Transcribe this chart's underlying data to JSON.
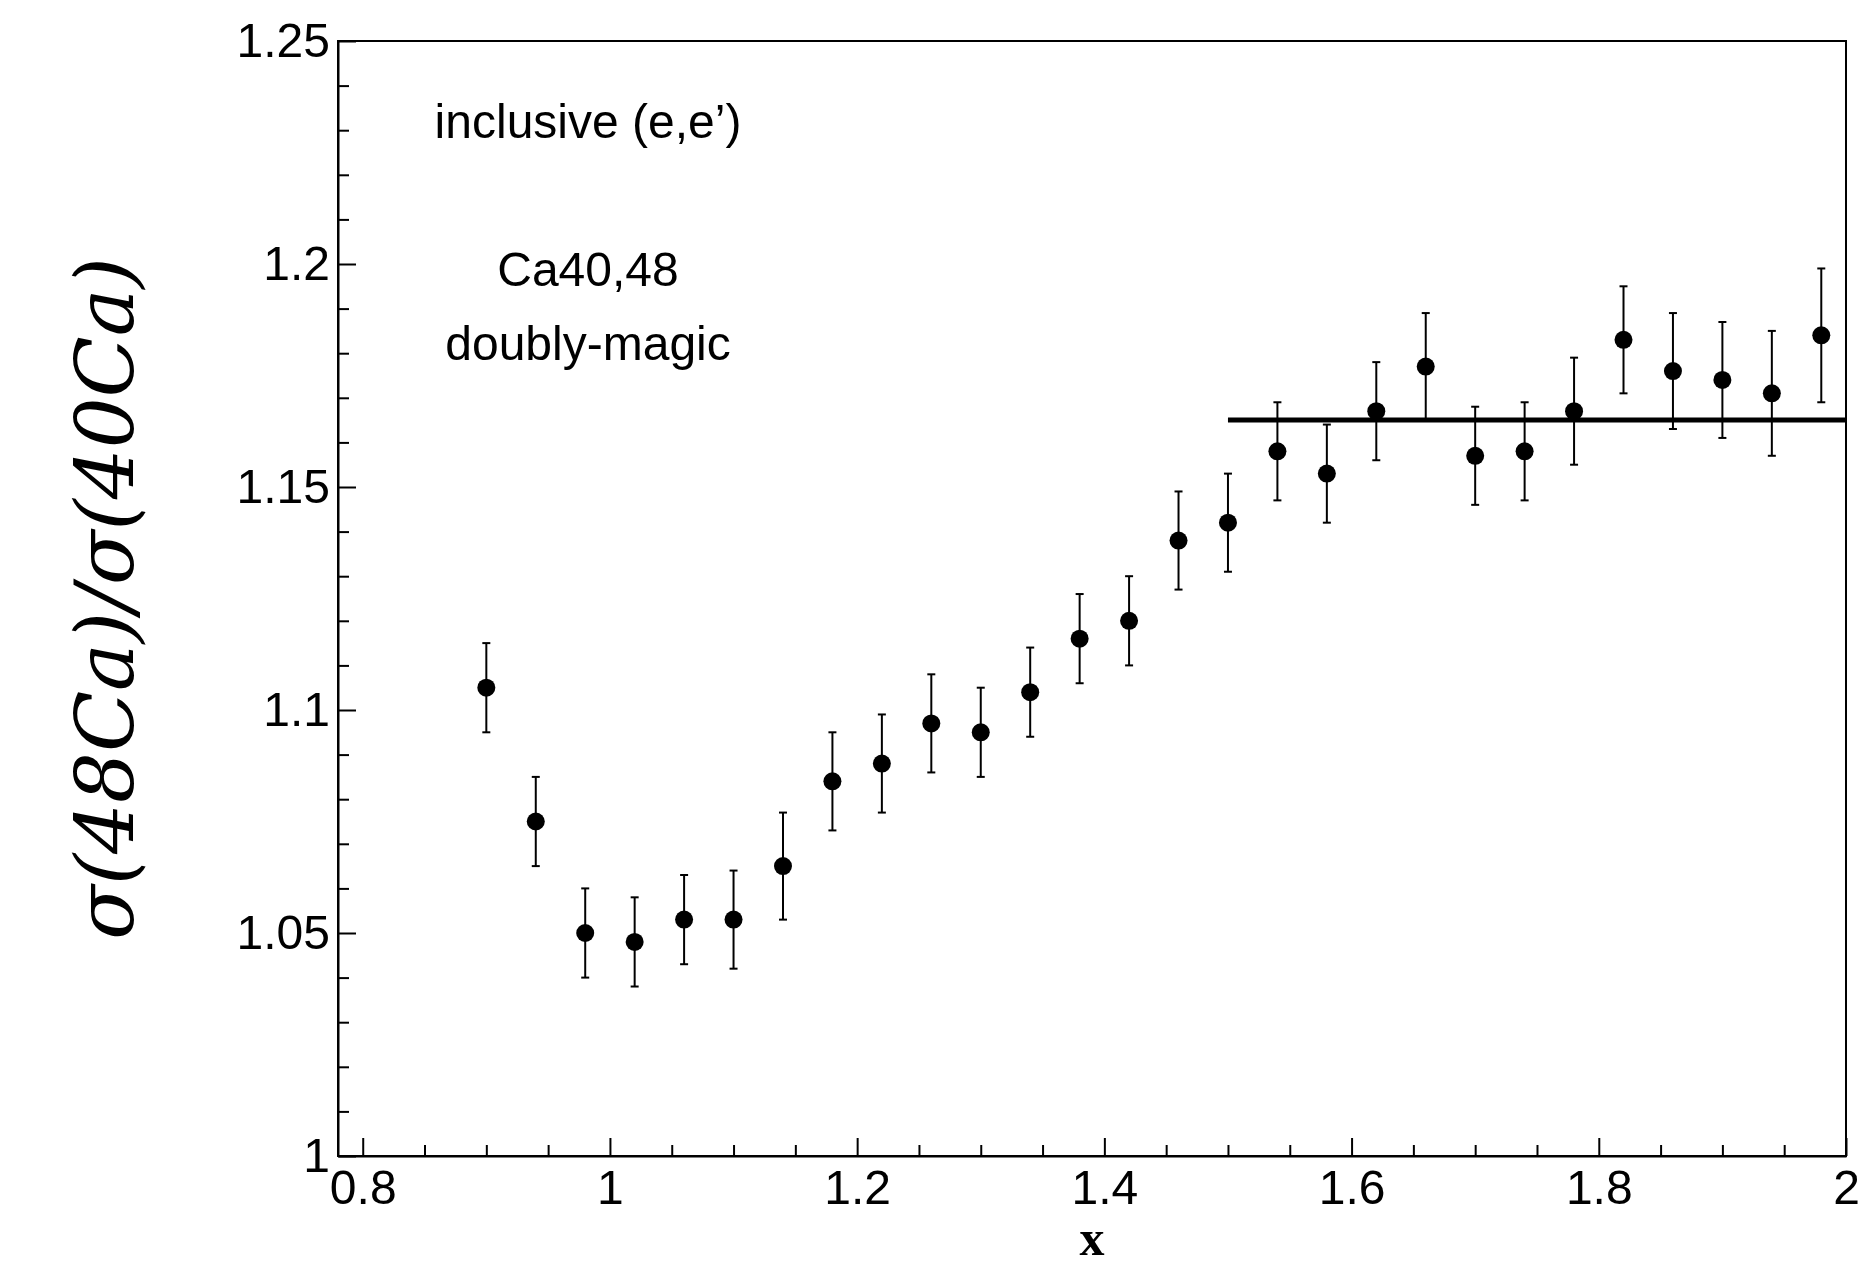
{
  "chart_data": {
    "type": "scatter",
    "xlabel": "x",
    "ylabel": "σ(48Ca)/σ(40Ca)",
    "annotations": [
      "inclusive (e,e’)",
      "Ca40,48",
      "doubly-magic"
    ],
    "xlim": [
      0.78,
      2.0
    ],
    "xticks": [
      {
        "value": 0.8,
        "label": "0.8"
      },
      {
        "value": 0.85,
        "label": null
      },
      {
        "value": 0.9,
        "label": null
      },
      {
        "value": 0.95,
        "label": null
      },
      1,
      {
        "value": 1.05,
        "label": null
      },
      {
        "value": 1.1,
        "label": null
      },
      {
        "value": 1.15,
        "label": null
      },
      1.2,
      {
        "value": 1.25,
        "label": null
      },
      {
        "value": 1.3,
        "label": null
      },
      {
        "value": 1.35,
        "label": null
      },
      1.4,
      {
        "value": 1.45,
        "label": null
      },
      {
        "value": 1.5,
        "label": null
      },
      {
        "value": 1.55,
        "label": null
      },
      1.6,
      {
        "value": 1.65,
        "label": null
      },
      {
        "value": 1.7,
        "label": null
      },
      {
        "value": 1.75,
        "label": null
      },
      1.8,
      {
        "value": 1.85,
        "label": null
      },
      {
        "value": 1.9,
        "label": null
      },
      {
        "value": 1.95,
        "label": null
      },
      2
    ],
    "ylim": [
      1.0,
      1.25
    ],
    "yticks": [
      1,
      {
        "value": 1.01,
        "label": null
      },
      {
        "value": 1.02,
        "label": null
      },
      {
        "value": 1.03,
        "label": null
      },
      {
        "value": 1.04,
        "label": null
      },
      1.05,
      {
        "value": 1.06,
        "label": null
      },
      {
        "value": 1.07,
        "label": null
      },
      {
        "value": 1.08,
        "label": null
      },
      {
        "value": 1.09,
        "label": null
      },
      1.1,
      {
        "value": 1.11,
        "label": null
      },
      {
        "value": 1.12,
        "label": null
      },
      {
        "value": 1.13,
        "label": null
      },
      {
        "value": 1.14,
        "label": null
      },
      1.15,
      {
        "value": 1.16,
        "label": null
      },
      {
        "value": 1.17,
        "label": null
      },
      {
        "value": 1.18,
        "label": null
      },
      {
        "value": 1.19,
        "label": null
      },
      1.2,
      {
        "value": 1.21,
        "label": null
      },
      {
        "value": 1.22,
        "label": null
      },
      {
        "value": 1.23,
        "label": null
      },
      {
        "value": 1.24,
        "label": null
      },
      1.25
    ],
    "grid": false,
    "series": [
      {
        "color": "#000000",
        "marker": "circle",
        "x": [
          0.9,
          0.94,
          0.98,
          1.02,
          1.06,
          1.1,
          1.14,
          1.18,
          1.22,
          1.26,
          1.3,
          1.34,
          1.38,
          1.42,
          1.46,
          1.5,
          1.54,
          1.58,
          1.62,
          1.66,
          1.7,
          1.74,
          1.78,
          1.82,
          1.86,
          1.9,
          1.94,
          1.98
        ],
        "values": [
          1.105,
          1.075,
          1.05,
          1.048,
          1.053,
          1.053,
          1.065,
          1.084,
          1.088,
          1.097,
          1.095,
          1.104,
          1.116,
          1.12,
          1.138,
          1.142,
          1.158,
          1.153,
          1.167,
          1.177,
          1.157,
          1.158,
          1.167,
          1.183,
          1.176,
          1.174,
          1.171,
          1.184
        ],
        "errors": [
          0.01,
          0.01,
          0.01,
          0.01,
          0.01,
          0.011,
          0.012,
          0.011,
          0.011,
          0.011,
          0.01,
          0.01,
          0.01,
          0.01,
          0.011,
          0.011,
          0.011,
          0.011,
          0.011,
          0.012,
          0.011,
          0.011,
          0.012,
          0.012,
          0.013,
          0.013,
          0.014,
          0.015
        ]
      },
      {
        "type": "line",
        "marker": "none",
        "color": "#000000",
        "x": [
          1.5,
          2.0
        ],
        "values": [
          1.165,
          1.165
        ]
      }
    ]
  }
}
